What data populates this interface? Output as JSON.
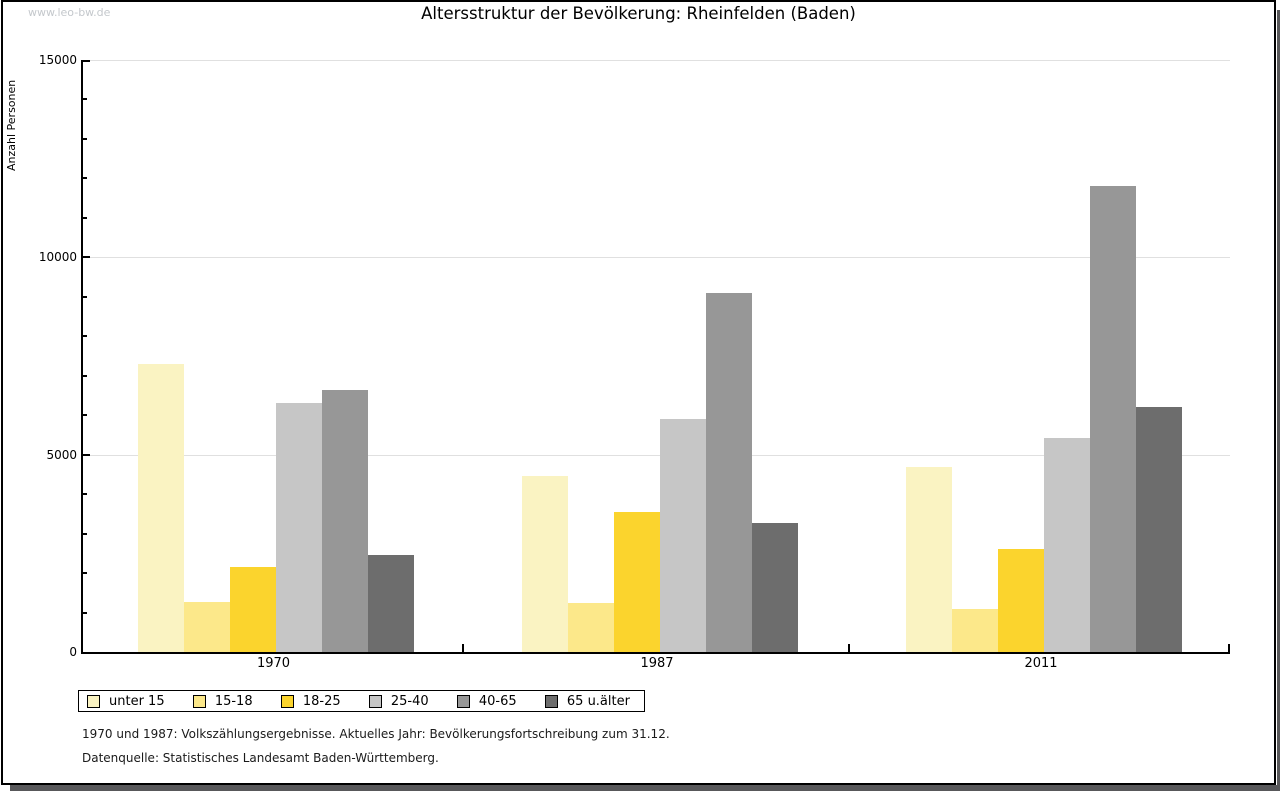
{
  "watermark": "www.leo-bw.de",
  "footnotes": {
    "line1": "1970 und 1987: Volkszählungsergebnisse. Aktuelles Jahr: Bevölkerungsfortschreibung zum 31.12.",
    "line2": "Datenquelle: Statistisches Landesamt Baden-Württemberg."
  },
  "chart_data": {
    "type": "bar",
    "title": "Altersstruktur der Bevölkerung: Rheinfelden (Baden)",
    "xlabel": "",
    "ylabel": "Anzahl Personen",
    "ylim": [
      0,
      15000
    ],
    "y_major_ticks": [
      0,
      5000,
      10000,
      15000
    ],
    "y_major_tick_labels": [
      "0",
      "5000",
      "10000",
      "15000"
    ],
    "y_minor_tick_step": 1000,
    "grid": true,
    "legend_position": "bottom",
    "categories": [
      "1970",
      "1987",
      "2011"
    ],
    "series": [
      {
        "name": "unter 15",
        "color": "#faf3c2",
        "values": [
          7300,
          4460,
          4690
        ]
      },
      {
        "name": "15-18",
        "color": "#fce88a",
        "values": [
          1270,
          1240,
          1090
        ]
      },
      {
        "name": "18-25",
        "color": "#fbd42d",
        "values": [
          2150,
          3550,
          2610
        ]
      },
      {
        "name": "25-40",
        "color": "#c6c6c6",
        "values": [
          6300,
          5900,
          5420
        ]
      },
      {
        "name": "40-65",
        "color": "#979797",
        "values": [
          6650,
          9100,
          11810
        ]
      },
      {
        "name": "65 u.älter",
        "color": "#6d6d6d",
        "values": [
          2450,
          3270,
          6210
        ]
      }
    ]
  }
}
